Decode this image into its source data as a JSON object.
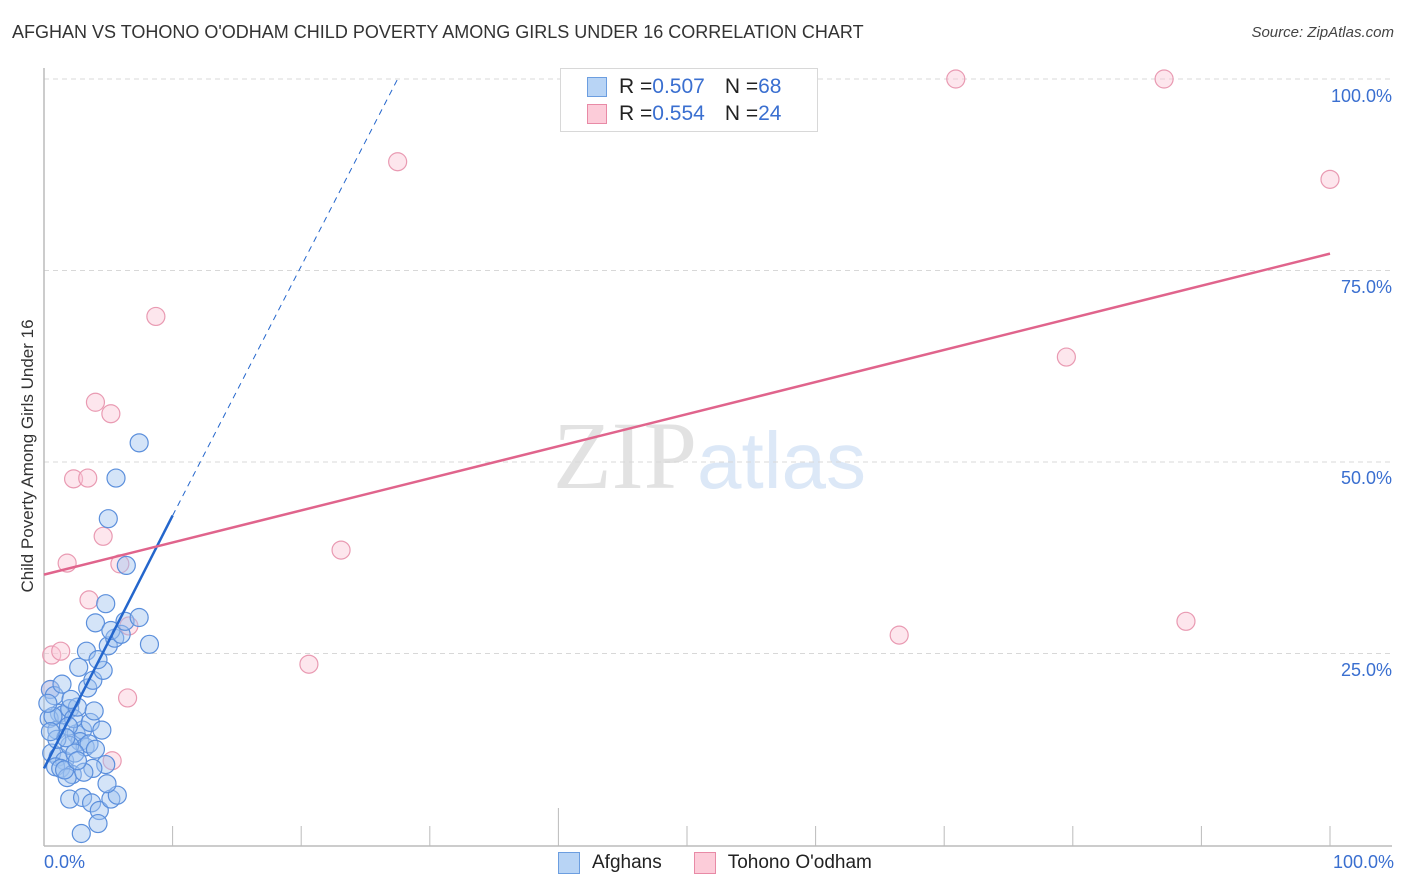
{
  "header": {
    "title": "AFGHAN VS TOHONO O'ODHAM CHILD POVERTY AMONG GIRLS UNDER 16 CORRELATION CHART",
    "source": "Source: ZipAtlas.com"
  },
  "legend_top": {
    "rows": [
      {
        "r_label": "R = ",
        "r_value": "0.507",
        "n_label": "N = ",
        "n_value": "68",
        "color": "#b8d4f5",
        "border": "#6c9ee0"
      },
      {
        "r_label": "R = ",
        "r_value": "0.554",
        "n_label": "N = ",
        "n_value": "24",
        "color": "#fcccd9",
        "border": "#e88aa6"
      }
    ]
  },
  "axes": {
    "y_label": "Child Poverty Among Girls Under 16",
    "y_ticks": [
      "100.0%",
      "75.0%",
      "50.0%",
      "25.0%"
    ],
    "x_ticks": {
      "left": "0.0%",
      "right": "100.0%"
    }
  },
  "legend_bottom": {
    "items": [
      {
        "label": "Afghans",
        "color": "#b8d4f5",
        "border": "#6c9ee0"
      },
      {
        "label": "Tohono O'odham",
        "color": "#fcccd9",
        "border": "#e88aa6"
      }
    ]
  },
  "watermark": {
    "zip": "ZIP",
    "atlas": "atlas"
  },
  "colors": {
    "afghan_fill": "rgba(160,196,240,0.45)",
    "afghan_stroke": "#5b8fdc",
    "afghan_line": "#2466cc",
    "tohono_fill": "rgba(250,200,215,0.45)",
    "tohono_stroke": "#e99ab2",
    "tohono_line": "#e0648c",
    "grid": "#d8d8d8",
    "tick_label": "#3a6fd0"
  },
  "chart_data": {
    "type": "scatter",
    "title": "AFGHAN VS TOHONO O'ODHAM CHILD POVERTY AMONG GIRLS UNDER 16 CORRELATION CHART",
    "xlabel": "",
    "ylabel": "Child Poverty Among Girls Under 16",
    "xlim": [
      0,
      100
    ],
    "ylim": [
      0,
      100
    ],
    "x_ticks": [
      "0.0%",
      "100.0%"
    ],
    "y_ticks": [
      "25.0%",
      "50.0%",
      "75.0%",
      "100.0%"
    ],
    "grid": true,
    "legend_position": "bottom",
    "series": [
      {
        "name": "Afghans",
        "R": 0.507,
        "N": 68,
        "points": [
          [
            0.5,
            20.3
          ],
          [
            0.8,
            19.5
          ],
          [
            1.2,
            17.2
          ],
          [
            0.4,
            16.5
          ],
          [
            1.0,
            15.0
          ],
          [
            1.5,
            17.0
          ],
          [
            2.0,
            17.8
          ],
          [
            0.6,
            12.0
          ],
          [
            1.1,
            11.5
          ],
          [
            1.6,
            11.0
          ],
          [
            0.9,
            10.2
          ],
          [
            1.3,
            10.0
          ],
          [
            2.2,
            9.2
          ],
          [
            1.8,
            8.8
          ],
          [
            2.5,
            14.5
          ],
          [
            3.0,
            15.0
          ],
          [
            2.8,
            13.5
          ],
          [
            3.2,
            12.8
          ],
          [
            3.5,
            13.2
          ],
          [
            2.0,
            13.0
          ],
          [
            2.3,
            16.5
          ],
          [
            2.6,
            18.0
          ],
          [
            3.6,
            16.0
          ],
          [
            4.0,
            12.5
          ],
          [
            4.5,
            15.0
          ],
          [
            4.8,
            10.5
          ],
          [
            3.4,
            20.5
          ],
          [
            2.7,
            23.2
          ],
          [
            3.8,
            21.5
          ],
          [
            4.6,
            22.8
          ],
          [
            3.3,
            25.3
          ],
          [
            4.2,
            24.2
          ],
          [
            5.0,
            26.0
          ],
          [
            5.5,
            27.0
          ],
          [
            4.0,
            29.0
          ],
          [
            5.2,
            28.0
          ],
          [
            6.0,
            27.5
          ],
          [
            6.3,
            29.2
          ],
          [
            7.4,
            29.7
          ],
          [
            8.2,
            26.2
          ],
          [
            4.8,
            31.5
          ],
          [
            5.0,
            42.6
          ],
          [
            5.6,
            47.9
          ],
          [
            6.4,
            36.5
          ],
          [
            7.4,
            52.5
          ],
          [
            2.0,
            6.0
          ],
          [
            3.0,
            6.2
          ],
          [
            3.7,
            5.5
          ],
          [
            4.3,
            4.5
          ],
          [
            5.2,
            6.0
          ],
          [
            5.7,
            6.5
          ],
          [
            4.2,
            2.8
          ],
          [
            2.9,
            1.5
          ],
          [
            3.8,
            10.0
          ],
          [
            4.9,
            8.0
          ],
          [
            1.4,
            21.0
          ],
          [
            0.7,
            16.8
          ],
          [
            1.9,
            15.5
          ],
          [
            2.4,
            12.0
          ],
          [
            1.6,
            9.8
          ],
          [
            3.1,
            9.5
          ],
          [
            0.3,
            18.5
          ],
          [
            1.0,
            13.8
          ],
          [
            2.1,
            19.0
          ],
          [
            3.9,
            17.5
          ],
          [
            1.7,
            14.0
          ],
          [
            0.5,
            14.8
          ],
          [
            2.6,
            11.0
          ]
        ],
        "trendline": {
          "x0": 0,
          "y0": 10.0,
          "x1": 10.0,
          "y1": 43.0,
          "extrapolated_to": [
            27.5,
            100.0
          ],
          "style": "solid then dashed"
        }
      },
      {
        "name": "Tohono O'odham",
        "R": 0.554,
        "N": 24,
        "points": [
          [
            0.6,
            24.8
          ],
          [
            0.5,
            20.3
          ],
          [
            1.3,
            25.3
          ],
          [
            1.8,
            36.8
          ],
          [
            2.3,
            47.8
          ],
          [
            3.5,
            32.0
          ],
          [
            3.4,
            47.9
          ],
          [
            4.0,
            57.8
          ],
          [
            4.6,
            40.3
          ],
          [
            5.2,
            56.3
          ],
          [
            5.9,
            36.7
          ],
          [
            6.6,
            28.6
          ],
          [
            6.5,
            19.2
          ],
          [
            5.3,
            11.0
          ],
          [
            8.7,
            69.0
          ],
          [
            20.6,
            23.6
          ],
          [
            23.1,
            38.5
          ],
          [
            27.5,
            89.2
          ],
          [
            66.5,
            27.4
          ],
          [
            70.9,
            100.0
          ],
          [
            79.5,
            63.7
          ],
          [
            88.8,
            29.2
          ],
          [
            87.1,
            100.0
          ],
          [
            100.0,
            86.9
          ]
        ],
        "trendline": {
          "x0": 0,
          "y0": 35.3,
          "x1": 100,
          "y1": 77.2,
          "style": "solid"
        }
      }
    ]
  }
}
